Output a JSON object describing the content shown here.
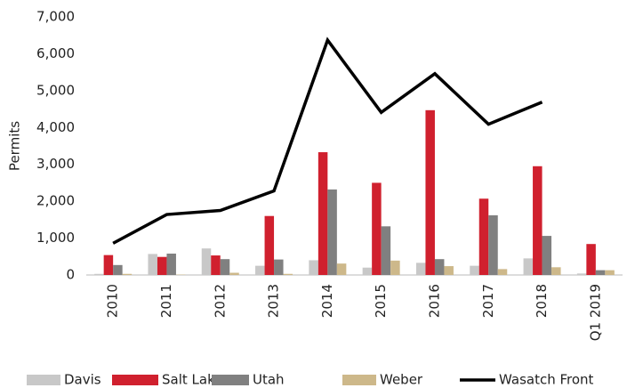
{
  "chart_data": {
    "type": "bar",
    "y_label": "Permits",
    "categories": [
      "2010",
      "2011",
      "2012",
      "2013",
      "2014",
      "2015",
      "2016",
      "2017",
      "2018",
      "Q1 2019"
    ],
    "series": [
      {
        "name": "Davis",
        "color": "#c8c8c8",
        "values": [
          30,
          570,
          720,
          250,
          400,
          200,
          330,
          250,
          450,
          40
        ]
      },
      {
        "name": "Salt Lake",
        "color": "#d0202e",
        "values": [
          540,
          490,
          530,
          1600,
          3330,
          2500,
          4470,
          2070,
          2950,
          840
        ]
      },
      {
        "name": "Utah",
        "color": "#808080",
        "values": [
          270,
          580,
          430,
          420,
          2320,
          1320,
          430,
          1620,
          1060,
          130
        ]
      },
      {
        "name": "Weber",
        "color": "#cdb88a",
        "values": [
          30,
          10,
          60,
          30,
          310,
          390,
          240,
          160,
          210,
          130
        ]
      },
      {
        "name": "Wasatch Front",
        "type": "line",
        "color": "#000000",
        "values": [
          860,
          1640,
          1750,
          2280,
          6370,
          4410,
          5460,
          4090,
          4690,
          null
        ]
      }
    ],
    "ylim": [
      0,
      7000
    ],
    "yticks": [
      0,
      {
        "value": 1000,
        "label": "1,000"
      },
      {
        "value": 2000,
        "label": "2,000"
      },
      {
        "value": 3000,
        "label": "3,000"
      },
      {
        "value": 4000,
        "label": "4,000"
      },
      {
        "value": 5000,
        "label": "5,000"
      },
      {
        "value": 6000,
        "label": "6,000"
      },
      {
        "value": 7000,
        "label": "7,000"
      }
    ],
    "legend": "bottom"
  }
}
